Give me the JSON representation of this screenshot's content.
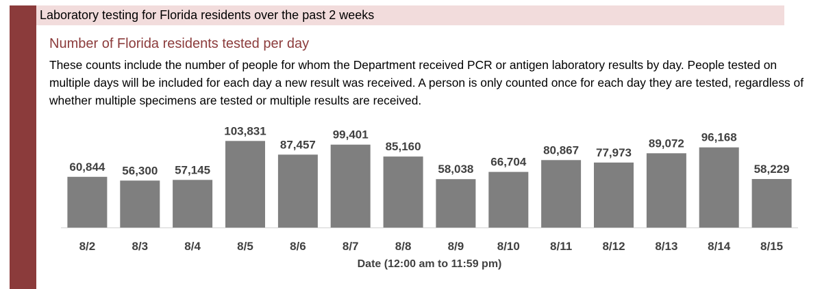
{
  "header": {
    "title": "Laboratory testing for Florida residents over the past 2 weeks"
  },
  "chart_data": {
    "type": "bar",
    "title": "Number of Florida residents tested per day",
    "description": "These counts include the number of people for whom the Department received PCR or antigen laboratory results by day. People tested on multiple days will be included for each day a new result was received. A person is only counted once for each day they are tested, regardless of whether multiple specimens are tested or multiple results are received.",
    "xlabel": "Date (12:00 am to 11:59 pm)",
    "ylabel": "",
    "ylim": [
      0,
      130000
    ],
    "categories": [
      "8/2",
      "8/3",
      "8/4",
      "8/5",
      "8/6",
      "8/7",
      "8/8",
      "8/9",
      "8/10",
      "8/11",
      "8/12",
      "8/13",
      "8/14",
      "8/15"
    ],
    "values": [
      60844,
      56300,
      57145,
      103831,
      87457,
      99401,
      85160,
      58038,
      66704,
      80867,
      77973,
      89072,
      96168,
      58229
    ],
    "data_labels": [
      "60,844",
      "56,300",
      "57,145",
      "103,831",
      "87,457",
      "99,401",
      "85,160",
      "58,038",
      "66,704",
      "80,867",
      "77,973",
      "89,072",
      "96,168",
      "58,229"
    ],
    "grid": false,
    "legend": "none",
    "bar_color": "#7f7f7f"
  },
  "colors": {
    "accent_bar": "#8b3b3b",
    "header_band": "#f2dcdc",
    "subtitle": "#8b3b3b",
    "label_text": "#404040"
  }
}
